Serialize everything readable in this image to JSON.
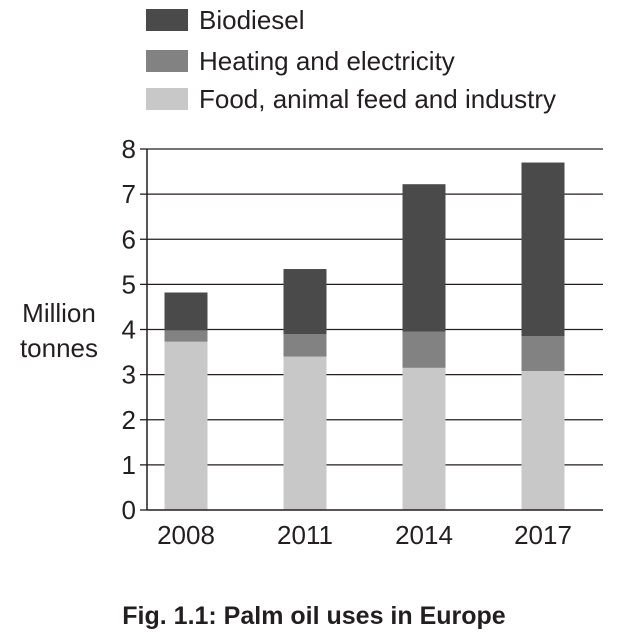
{
  "chart_data": {
    "type": "bar",
    "stacked": true,
    "categories": [
      "2008",
      "2011",
      "2014",
      "2017"
    ],
    "series": [
      {
        "name": "Food, animal feed and industry",
        "values": [
          3.73,
          3.4,
          3.15,
          3.08
        ],
        "color": "#c8c8c8"
      },
      {
        "name": "Heating and electricity",
        "values": [
          0.25,
          0.5,
          0.8,
          0.77
        ],
        "color": "#828282"
      },
      {
        "name": "Biodiesel",
        "values": [
          0.84,
          1.44,
          3.27,
          3.85
        ],
        "color": "#4a4a4a"
      }
    ],
    "legend_order": [
      "Biodiesel",
      "Heating and electricity",
      "Food, animal feed and industry"
    ],
    "ylabel_lines": [
      "Million",
      "tonnes"
    ],
    "xlabel": "",
    "ylim": [
      0,
      8
    ],
    "yticks": [
      "0",
      "1",
      "2",
      "3",
      "4",
      "5",
      "6",
      "7",
      "8"
    ],
    "grid": true,
    "legend_position": "top"
  },
  "caption": "Fig. 1.1: Palm oil uses in Europe"
}
